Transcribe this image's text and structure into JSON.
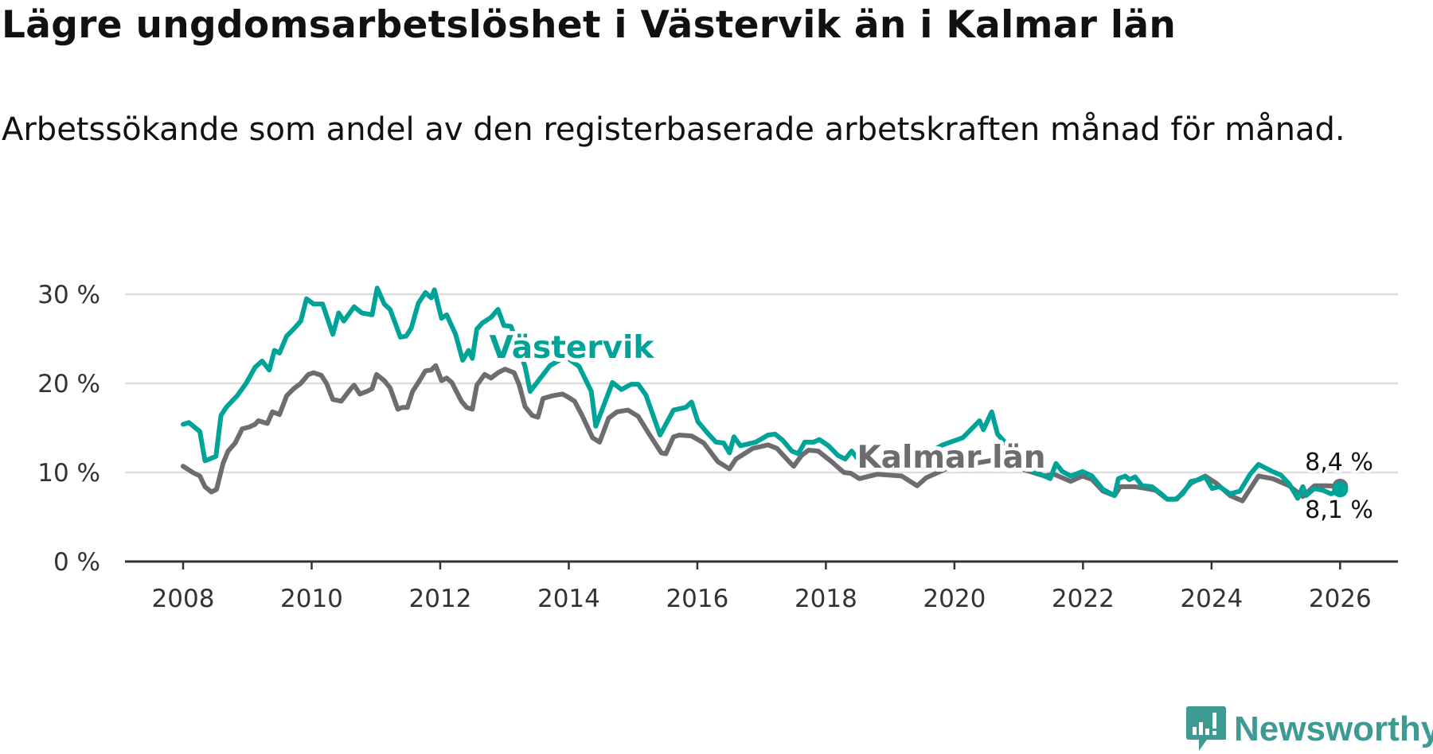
{
  "title": "Lägre ungdomsarbetslöshet i Västervik än i Kalmar län",
  "subtitle": "Arbetssökande som andel av den registerbaserade arbetskraften månad för månad.",
  "brand": "Newsworthy",
  "colors": {
    "vastervik": "#00a398",
    "kalmar": "#6d6c71",
    "grid": "#dedede",
    "axis": "#333333",
    "brand": "#3d9b94"
  },
  "chart_data": {
    "type": "line",
    "title": "Lägre ungdomsarbetslöshet i Västervik än i Kalmar län",
    "xlabel": "",
    "ylabel": "",
    "xlim": [
      2007.1,
      2026.9
    ],
    "ylim": [
      0,
      30
    ],
    "x_ticks": [
      2008,
      2010,
      2012,
      2014,
      2016,
      2018,
      2020,
      2022,
      2024,
      2026
    ],
    "x_tick_labels": [
      "2008",
      "2010",
      "2012",
      "2014",
      "2016",
      "2018",
      "2020",
      "2022",
      "2024",
      "2026"
    ],
    "y_ticks": [
      0,
      10,
      20,
      30
    ],
    "y_tick_labels": [
      "0 %",
      "10 %",
      "20 %",
      "30 %"
    ],
    "grid": true,
    "series": [
      {
        "name": "Västervik",
        "end_label": "8,1 %",
        "end_value": 8.1,
        "points": [
          [
            2008.0,
            15.4
          ],
          [
            2008.09,
            15.6
          ],
          [
            2008.26,
            14.6
          ],
          [
            2008.34,
            11.3
          ],
          [
            2008.51,
            11.8
          ],
          [
            2008.59,
            16.4
          ],
          [
            2008.67,
            17.3
          ],
          [
            2008.84,
            18.6
          ],
          [
            2008.98,
            20.0
          ],
          [
            2009.12,
            21.8
          ],
          [
            2009.23,
            22.5
          ],
          [
            2009.34,
            21.5
          ],
          [
            2009.42,
            23.7
          ],
          [
            2009.5,
            23.4
          ],
          [
            2009.61,
            25.3
          ],
          [
            2009.72,
            26.1
          ],
          [
            2009.83,
            27.0
          ],
          [
            2009.92,
            29.5
          ],
          [
            2010.03,
            28.9
          ],
          [
            2010.17,
            28.9
          ],
          [
            2010.33,
            25.5
          ],
          [
            2010.42,
            27.9
          ],
          [
            2010.5,
            27.0
          ],
          [
            2010.66,
            28.6
          ],
          [
            2010.78,
            27.9
          ],
          [
            2010.94,
            27.7
          ],
          [
            2011.02,
            30.7
          ],
          [
            2011.13,
            28.9
          ],
          [
            2011.22,
            28.3
          ],
          [
            2011.38,
            25.2
          ],
          [
            2011.47,
            25.3
          ],
          [
            2011.55,
            26.2
          ],
          [
            2011.66,
            29.0
          ],
          [
            2011.77,
            30.2
          ],
          [
            2011.86,
            29.6
          ],
          [
            2011.91,
            30.5
          ],
          [
            2012.02,
            27.3
          ],
          [
            2012.1,
            27.7
          ],
          [
            2012.24,
            25.5
          ],
          [
            2012.35,
            22.6
          ],
          [
            2012.44,
            23.7
          ],
          [
            2012.5,
            22.8
          ],
          [
            2012.57,
            26.1
          ],
          [
            2012.66,
            26.8
          ],
          [
            2012.79,
            27.4
          ],
          [
            2012.9,
            28.3
          ],
          [
            2012.99,
            26.5
          ],
          [
            2013.1,
            26.4
          ],
          [
            2013.32,
            21.9
          ],
          [
            2013.4,
            19.1
          ],
          [
            2013.71,
            22.0
          ],
          [
            2013.95,
            23.0
          ],
          [
            2014.16,
            21.9
          ],
          [
            2014.35,
            19.1
          ],
          [
            2014.42,
            15.2
          ],
          [
            2014.68,
            20.1
          ],
          [
            2014.82,
            19.3
          ],
          [
            2014.97,
            19.9
          ],
          [
            2015.08,
            19.9
          ],
          [
            2015.2,
            18.7
          ],
          [
            2015.42,
            14.2
          ],
          [
            2015.63,
            17.0
          ],
          [
            2015.82,
            17.3
          ],
          [
            2015.91,
            17.9
          ],
          [
            2016.01,
            15.7
          ],
          [
            2016.15,
            14.5
          ],
          [
            2016.29,
            13.4
          ],
          [
            2016.41,
            13.3
          ],
          [
            2016.5,
            12.2
          ],
          [
            2016.57,
            14.0
          ],
          [
            2016.67,
            13.0
          ],
          [
            2016.91,
            13.4
          ],
          [
            2017.1,
            14.2
          ],
          [
            2017.21,
            14.3
          ],
          [
            2017.33,
            13.6
          ],
          [
            2017.47,
            12.4
          ],
          [
            2017.57,
            12.1
          ],
          [
            2017.67,
            13.4
          ],
          [
            2017.81,
            13.4
          ],
          [
            2017.9,
            13.7
          ],
          [
            2018.04,
            13.0
          ],
          [
            2018.19,
            11.9
          ],
          [
            2018.3,
            11.5
          ],
          [
            2018.4,
            12.4
          ],
          [
            2018.5,
            11.5
          ],
          [
            2018.8,
            11.0
          ],
          [
            2019.2,
            10.5
          ],
          [
            2019.5,
            11.8
          ],
          [
            2019.82,
            13.1
          ],
          [
            2020.13,
            13.9
          ],
          [
            2020.39,
            15.8
          ],
          [
            2020.45,
            14.8
          ],
          [
            2020.58,
            16.8
          ],
          [
            2020.67,
            14.3
          ],
          [
            2020.9,
            12.5
          ],
          [
            2021.2,
            10.2
          ],
          [
            2021.4,
            9.6
          ],
          [
            2021.49,
            9.3
          ],
          [
            2021.58,
            11.0
          ],
          [
            2021.68,
            10.1
          ],
          [
            2021.81,
            9.6
          ],
          [
            2021.99,
            10.1
          ],
          [
            2022.14,
            9.6
          ],
          [
            2022.31,
            8.1
          ],
          [
            2022.49,
            7.4
          ],
          [
            2022.55,
            9.3
          ],
          [
            2022.66,
            9.6
          ],
          [
            2022.72,
            9.2
          ],
          [
            2022.81,
            9.5
          ],
          [
            2022.92,
            8.5
          ],
          [
            2023.07,
            8.4
          ],
          [
            2023.2,
            7.7
          ],
          [
            2023.31,
            7.0
          ],
          [
            2023.44,
            7.0
          ],
          [
            2023.55,
            7.6
          ],
          [
            2023.68,
            9.0
          ],
          [
            2023.81,
            9.2
          ],
          [
            2023.9,
            9.5
          ],
          [
            2024.01,
            8.2
          ],
          [
            2024.12,
            8.4
          ],
          [
            2024.29,
            7.6
          ],
          [
            2024.44,
            7.9
          ],
          [
            2024.6,
            9.8
          ],
          [
            2024.73,
            10.9
          ],
          [
            2024.95,
            10.1
          ],
          [
            2025.08,
            9.7
          ],
          [
            2025.21,
            8.7
          ],
          [
            2025.34,
            7.1
          ],
          [
            2025.42,
            8.4
          ],
          [
            2025.47,
            7.4
          ],
          [
            2025.6,
            8.2
          ],
          [
            2025.73,
            8.0
          ],
          [
            2025.86,
            7.6
          ],
          [
            2026.0,
            8.1
          ]
        ]
      },
      {
        "name": "Kalmar län",
        "end_label": "8,4 %",
        "end_value": 8.4,
        "points": [
          [
            2008.0,
            10.7
          ],
          [
            2008.15,
            10.0
          ],
          [
            2008.26,
            9.6
          ],
          [
            2008.34,
            8.4
          ],
          [
            2008.44,
            7.8
          ],
          [
            2008.52,
            8.1
          ],
          [
            2008.62,
            11.0
          ],
          [
            2008.7,
            12.4
          ],
          [
            2008.81,
            13.3
          ],
          [
            2008.92,
            14.9
          ],
          [
            2009.03,
            15.1
          ],
          [
            2009.12,
            15.4
          ],
          [
            2009.17,
            15.8
          ],
          [
            2009.31,
            15.5
          ],
          [
            2009.39,
            16.8
          ],
          [
            2009.5,
            16.5
          ],
          [
            2009.61,
            18.6
          ],
          [
            2009.72,
            19.4
          ],
          [
            2009.83,
            20.0
          ],
          [
            2009.95,
            21.0
          ],
          [
            2010.03,
            21.2
          ],
          [
            2010.15,
            20.9
          ],
          [
            2010.23,
            20.0
          ],
          [
            2010.33,
            18.2
          ],
          [
            2010.46,
            18.0
          ],
          [
            2010.61,
            19.4
          ],
          [
            2010.66,
            19.8
          ],
          [
            2010.75,
            18.8
          ],
          [
            2010.86,
            19.1
          ],
          [
            2010.94,
            19.4
          ],
          [
            2011.01,
            21.0
          ],
          [
            2011.13,
            20.3
          ],
          [
            2011.22,
            19.5
          ],
          [
            2011.34,
            17.1
          ],
          [
            2011.41,
            17.3
          ],
          [
            2011.49,
            17.3
          ],
          [
            2011.57,
            19.1
          ],
          [
            2011.66,
            20.1
          ],
          [
            2011.77,
            21.4
          ],
          [
            2011.86,
            21.5
          ],
          [
            2011.93,
            22.0
          ],
          [
            2012.02,
            20.3
          ],
          [
            2012.1,
            20.6
          ],
          [
            2012.18,
            20.1
          ],
          [
            2012.33,
            18.0
          ],
          [
            2012.41,
            17.3
          ],
          [
            2012.5,
            17.1
          ],
          [
            2012.57,
            19.8
          ],
          [
            2012.69,
            21.0
          ],
          [
            2012.79,
            20.6
          ],
          [
            2012.9,
            21.2
          ],
          [
            2013.01,
            21.6
          ],
          [
            2013.15,
            21.2
          ],
          [
            2013.23,
            19.8
          ],
          [
            2013.32,
            17.4
          ],
          [
            2013.43,
            16.4
          ],
          [
            2013.52,
            16.2
          ],
          [
            2013.6,
            18.3
          ],
          [
            2013.74,
            18.6
          ],
          [
            2013.9,
            18.8
          ],
          [
            2013.98,
            18.5
          ],
          [
            2014.09,
            18.0
          ],
          [
            2014.2,
            16.5
          ],
          [
            2014.37,
            13.9
          ],
          [
            2014.48,
            13.4
          ],
          [
            2014.62,
            16.1
          ],
          [
            2014.75,
            16.8
          ],
          [
            2014.92,
            17.0
          ],
          [
            2015.08,
            16.3
          ],
          [
            2015.25,
            14.3
          ],
          [
            2015.44,
            12.2
          ],
          [
            2015.51,
            12.1
          ],
          [
            2015.63,
            14.0
          ],
          [
            2015.72,
            14.2
          ],
          [
            2015.91,
            14.1
          ],
          [
            2016.1,
            13.3
          ],
          [
            2016.32,
            11.2
          ],
          [
            2016.5,
            10.4
          ],
          [
            2016.6,
            11.5
          ],
          [
            2016.86,
            12.7
          ],
          [
            2017.1,
            13.1
          ],
          [
            2017.24,
            12.7
          ],
          [
            2017.43,
            11.2
          ],
          [
            2017.5,
            10.7
          ],
          [
            2017.62,
            11.9
          ],
          [
            2017.73,
            12.5
          ],
          [
            2017.88,
            12.4
          ],
          [
            2018.09,
            11.2
          ],
          [
            2018.28,
            10.0
          ],
          [
            2018.39,
            9.9
          ],
          [
            2018.52,
            9.3
          ],
          [
            2018.8,
            9.8
          ],
          [
            2019.18,
            9.6
          ],
          [
            2019.42,
            8.5
          ],
          [
            2019.56,
            9.4
          ],
          [
            2019.9,
            10.5
          ],
          [
            2020.3,
            11.0
          ],
          [
            2020.7,
            11.5
          ],
          [
            2021.0,
            10.5
          ],
          [
            2021.4,
            9.6
          ],
          [
            2021.55,
            9.8
          ],
          [
            2021.81,
            9.0
          ],
          [
            2021.99,
            9.6
          ],
          [
            2022.14,
            9.2
          ],
          [
            2022.31,
            7.9
          ],
          [
            2022.49,
            7.4
          ],
          [
            2022.58,
            8.4
          ],
          [
            2022.81,
            8.4
          ],
          [
            2022.98,
            8.2
          ],
          [
            2023.13,
            8.0
          ],
          [
            2023.31,
            7.0
          ],
          [
            2023.46,
            7.0
          ],
          [
            2023.68,
            8.8
          ],
          [
            2023.9,
            9.6
          ],
          [
            2024.07,
            8.8
          ],
          [
            2024.29,
            7.4
          ],
          [
            2024.48,
            6.8
          ],
          [
            2024.73,
            9.6
          ],
          [
            2024.95,
            9.3
          ],
          [
            2025.21,
            8.5
          ],
          [
            2025.42,
            7.3
          ],
          [
            2025.6,
            8.5
          ],
          [
            2025.82,
            8.5
          ],
          [
            2026.0,
            8.4
          ]
        ]
      }
    ]
  }
}
